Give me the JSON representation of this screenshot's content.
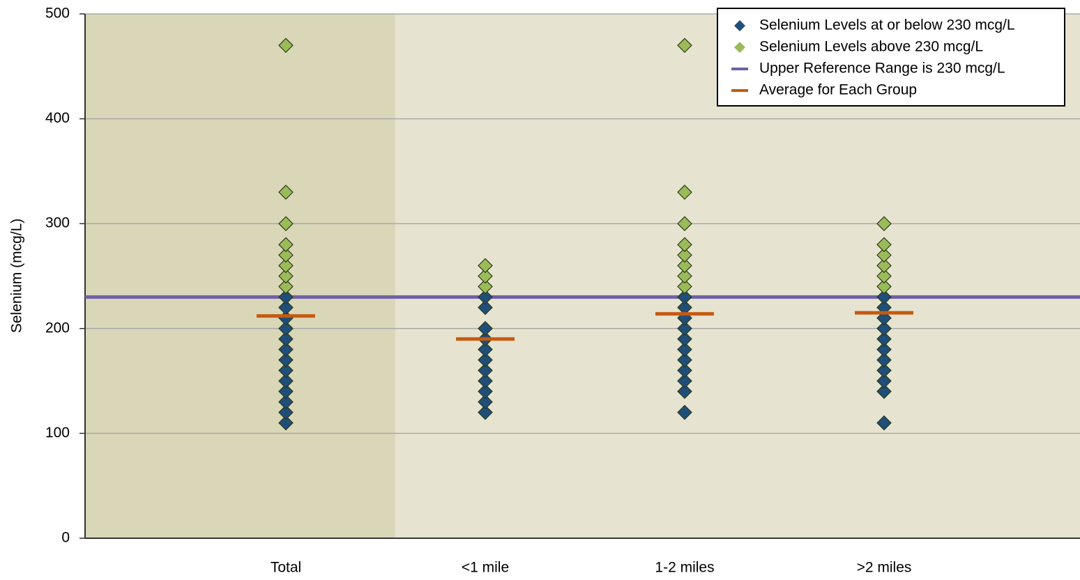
{
  "chart_data": {
    "type": "strip",
    "y_label": "Selenium (mcg/L)",
    "categories": [
      "Total",
      "<1 mile",
      "1-2 miles",
      ">2 miles"
    ],
    "ylim": [
      0,
      500
    ],
    "yticks": [
      0,
      100,
      200,
      300,
      400,
      500
    ],
    "grid": true,
    "legend": "upper right",
    "series": [
      {
        "name": "Selenium Levels at or below 230 mcg/L",
        "color": "#1f4e79",
        "values": [
          [
            110,
            120,
            130,
            140,
            150,
            160,
            170,
            180,
            190,
            200,
            210,
            220,
            230
          ],
          [
            120,
            130,
            140,
            150,
            160,
            170,
            180,
            190,
            200,
            220,
            230
          ],
          [
            120,
            140,
            150,
            160,
            170,
            180,
            190,
            200,
            210,
            220,
            230
          ],
          [
            110,
            140,
            150,
            160,
            170,
            180,
            190,
            200,
            210,
            220,
            230
          ]
        ]
      },
      {
        "name": "Selenium Levels above 230 mcg/L",
        "color": "#9bbb59",
        "values": [
          [
            240,
            250,
            260,
            270,
            280,
            300,
            330,
            470
          ],
          [
            240,
            250,
            260
          ],
          [
            240,
            250,
            260,
            270,
            280,
            300,
            330,
            470
          ],
          [
            240,
            250,
            260,
            270,
            280,
            300
          ]
        ]
      }
    ],
    "reference_line": {
      "name": "Upper Reference Range is 230 mcg/L",
      "color": "#7060a8",
      "value": 230
    },
    "averages": {
      "name": "Average for Each Group",
      "color": "#c55a11",
      "values": [
        212,
        190,
        214,
        215
      ]
    }
  }
}
